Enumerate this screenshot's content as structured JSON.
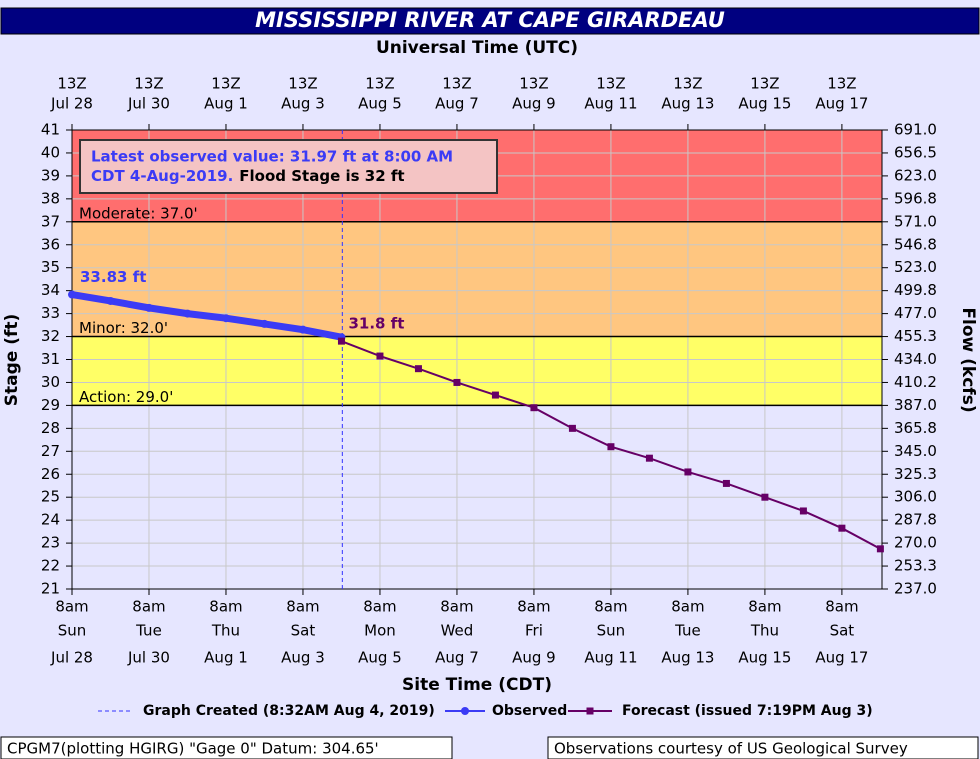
{
  "chart_data": {
    "type": "line",
    "title": "MISSISSIPPI RIVER AT CAPE GIRARDEAU",
    "top_axis_title": "Universal Time (UTC)",
    "xlabel": "Site Time (CDT)",
    "ylabel": "Stage (ft)",
    "y2label": "Flow (kcfs)",
    "xlim": [
      "2019-07-28T08:00",
      "2019-08-18T09:00"
    ],
    "ylim": [
      21,
      41
    ],
    "yticks": [
      21,
      22,
      23,
      24,
      25,
      26,
      27,
      28,
      29,
      30,
      31,
      32,
      33,
      34,
      35,
      36,
      37,
      38,
      39,
      40,
      41
    ],
    "y2tick_labels": [
      "237.0",
      "253.3",
      "270.0",
      "287.8",
      "306.0",
      "325.3",
      "345.0",
      "365.8",
      "387.0",
      "410.2",
      "434.0",
      "455.3",
      "477.0",
      "499.8",
      "523.0",
      "546.8",
      "571.0",
      "596.8",
      "623.0",
      "656.5",
      "691.0"
    ],
    "xticks": [
      {
        "value": "2019-07-28T08:00",
        "label": [
          "8am",
          "Sun",
          "Jul 28"
        ]
      },
      {
        "value": "2019-07-30T08:00",
        "label": [
          "8am",
          "Tue",
          "Jul 30"
        ]
      },
      {
        "value": "2019-08-01T08:00",
        "label": [
          "8am",
          "Thu",
          "Aug 1"
        ]
      },
      {
        "value": "2019-08-03T08:00",
        "label": [
          "8am",
          "Sat",
          "Aug 3"
        ]
      },
      {
        "value": "2019-08-05T08:00",
        "label": [
          "8am",
          "Mon",
          "Aug 5"
        ]
      },
      {
        "value": "2019-08-07T08:00",
        "label": [
          "8am",
          "Wed",
          "Aug 7"
        ]
      },
      {
        "value": "2019-08-09T08:00",
        "label": [
          "8am",
          "Fri",
          "Aug 9"
        ]
      },
      {
        "value": "2019-08-11T08:00",
        "label": [
          "8am",
          "Sun",
          "Aug 11"
        ]
      },
      {
        "value": "2019-08-13T08:00",
        "label": [
          "8am",
          "Tue",
          "Aug 13"
        ]
      },
      {
        "value": "2019-08-15T08:00",
        "label": [
          "8am",
          "Thu",
          "Aug 15"
        ]
      },
      {
        "value": "2019-08-17T08:00",
        "label": [
          "8am",
          "Sat",
          "Aug 17"
        ]
      }
    ],
    "top_xticks": [
      {
        "value": "2019-07-28T08:00",
        "label": [
          "13Z",
          "Jul 28"
        ]
      },
      {
        "value": "2019-07-30T08:00",
        "label": [
          "13Z",
          "Jul 30"
        ]
      },
      {
        "value": "2019-08-01T08:00",
        "label": [
          "13Z",
          "Aug  1"
        ]
      },
      {
        "value": "2019-08-03T08:00",
        "label": [
          "13Z",
          "Aug  3"
        ]
      },
      {
        "value": "2019-08-05T08:00",
        "label": [
          "13Z",
          "Aug  5"
        ]
      },
      {
        "value": "2019-08-07T08:00",
        "label": [
          "13Z",
          "Aug  7"
        ]
      },
      {
        "value": "2019-08-09T08:00",
        "label": [
          "13Z",
          "Aug  9"
        ]
      },
      {
        "value": "2019-08-11T08:00",
        "label": [
          "13Z",
          "Aug 11"
        ]
      },
      {
        "value": "2019-08-13T08:00",
        "label": [
          "13Z",
          "Aug 13"
        ]
      },
      {
        "value": "2019-08-15T08:00",
        "label": [
          "13Z",
          "Aug 15"
        ]
      },
      {
        "value": "2019-08-17T08:00",
        "label": [
          "13Z",
          "Aug 17"
        ]
      }
    ],
    "grid": true,
    "bands": [
      {
        "from": 29,
        "to": 32,
        "color": "#ffff66"
      },
      {
        "from": 32,
        "to": 37,
        "color": "#ffc680"
      },
      {
        "from": 37,
        "to": 41,
        "color": "#ff6e6e"
      }
    ],
    "thresholds": [
      {
        "label": "Moderate: 37.0'",
        "value": 37
      },
      {
        "label": "Minor: 32.0'",
        "value": 32
      },
      {
        "label": "Action: 29.0'",
        "value": 29
      }
    ],
    "created": {
      "x": "2019-08-04T08:32",
      "label": "Graph Created (8:32AM Aug 4, 2019)",
      "color": "#3333ff"
    },
    "annotation": {
      "observed_text": [
        "Latest observed value: 31.97 ft at 8:00 AM",
        "CDT 4-Aug-2019."
      ],
      "flood_text": "Flood Stage is 32 ft"
    },
    "series": [
      {
        "name": "Observed",
        "color": "#3b3bf5",
        "x": [
          "2019-07-28T08:00",
          "2019-07-29T08:00",
          "2019-07-30T08:00",
          "2019-07-31T08:00",
          "2019-08-01T08:00",
          "2019-08-02T08:00",
          "2019-08-03T08:00",
          "2019-08-04T08:00"
        ],
        "values": [
          33.83,
          33.55,
          33.25,
          33.0,
          32.8,
          32.55,
          32.3,
          31.97
        ],
        "first_label": "33.83 ft"
      },
      {
        "name": "Forecast (issued 7:19PM Aug 3)",
        "color": "#660066",
        "x": [
          "2019-08-04T08:00",
          "2019-08-05T08:00",
          "2019-08-06T08:00",
          "2019-08-07T08:00",
          "2019-08-08T08:00",
          "2019-08-09T08:00",
          "2019-08-10T08:00",
          "2019-08-11T08:00",
          "2019-08-12T08:00",
          "2019-08-13T08:00",
          "2019-08-14T08:00",
          "2019-08-15T08:00",
          "2019-08-16T08:00",
          "2019-08-17T08:00",
          "2019-08-18T08:00"
        ],
        "values": [
          31.8,
          31.15,
          30.6,
          30.0,
          29.45,
          28.9,
          28.0,
          27.2,
          26.7,
          26.1,
          25.6,
          25.0,
          24.4,
          23.65,
          22.75
        ],
        "first_label": "31.8 ft"
      }
    ],
    "footer_left": "CPGM7(plotting HGIRG) \"Gage 0\" Datum: 304.65'",
    "footer_right": "Observations courtesy of US Geological Survey"
  }
}
